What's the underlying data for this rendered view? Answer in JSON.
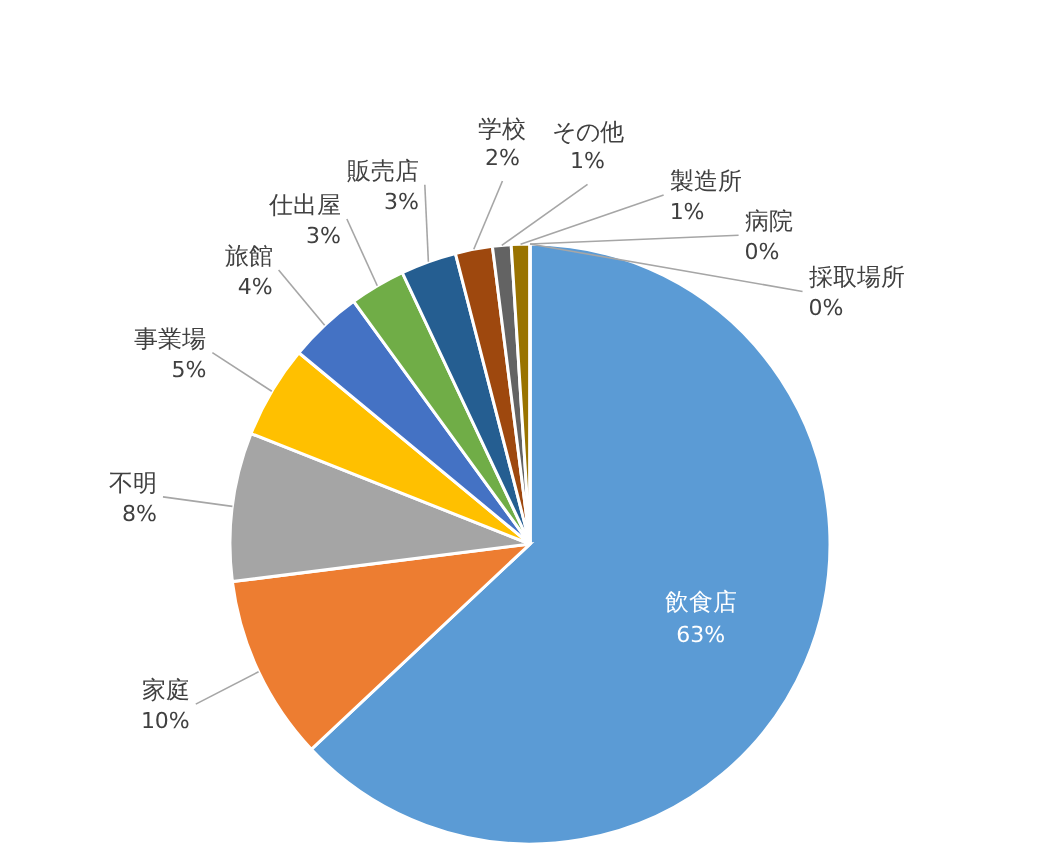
{
  "chart_data": {
    "type": "pie",
    "categories": [
      "飲食店",
      "家庭",
      "不明",
      "事業場",
      "旅館",
      "仕出屋",
      "販売店",
      "学校",
      "その他",
      "製造所",
      "病院",
      "採取場所"
    ],
    "values": [
      63,
      10,
      8,
      5,
      4,
      3,
      3,
      2,
      1,
      1,
      0,
      0
    ],
    "value_labels": [
      "63%",
      "10%",
      "8%",
      "5%",
      "4%",
      "3%",
      "3%",
      "2%",
      "1%",
      "1%",
      "0%",
      "0%"
    ],
    "colors": [
      "#5b9bd5",
      "#ed7d31",
      "#a5a5a5",
      "#ffc000",
      "#4472c4",
      "#70ad47",
      "#255e91",
      "#9e480e",
      "#636363",
      "#997300",
      "#264478",
      "#43682b"
    ]
  }
}
